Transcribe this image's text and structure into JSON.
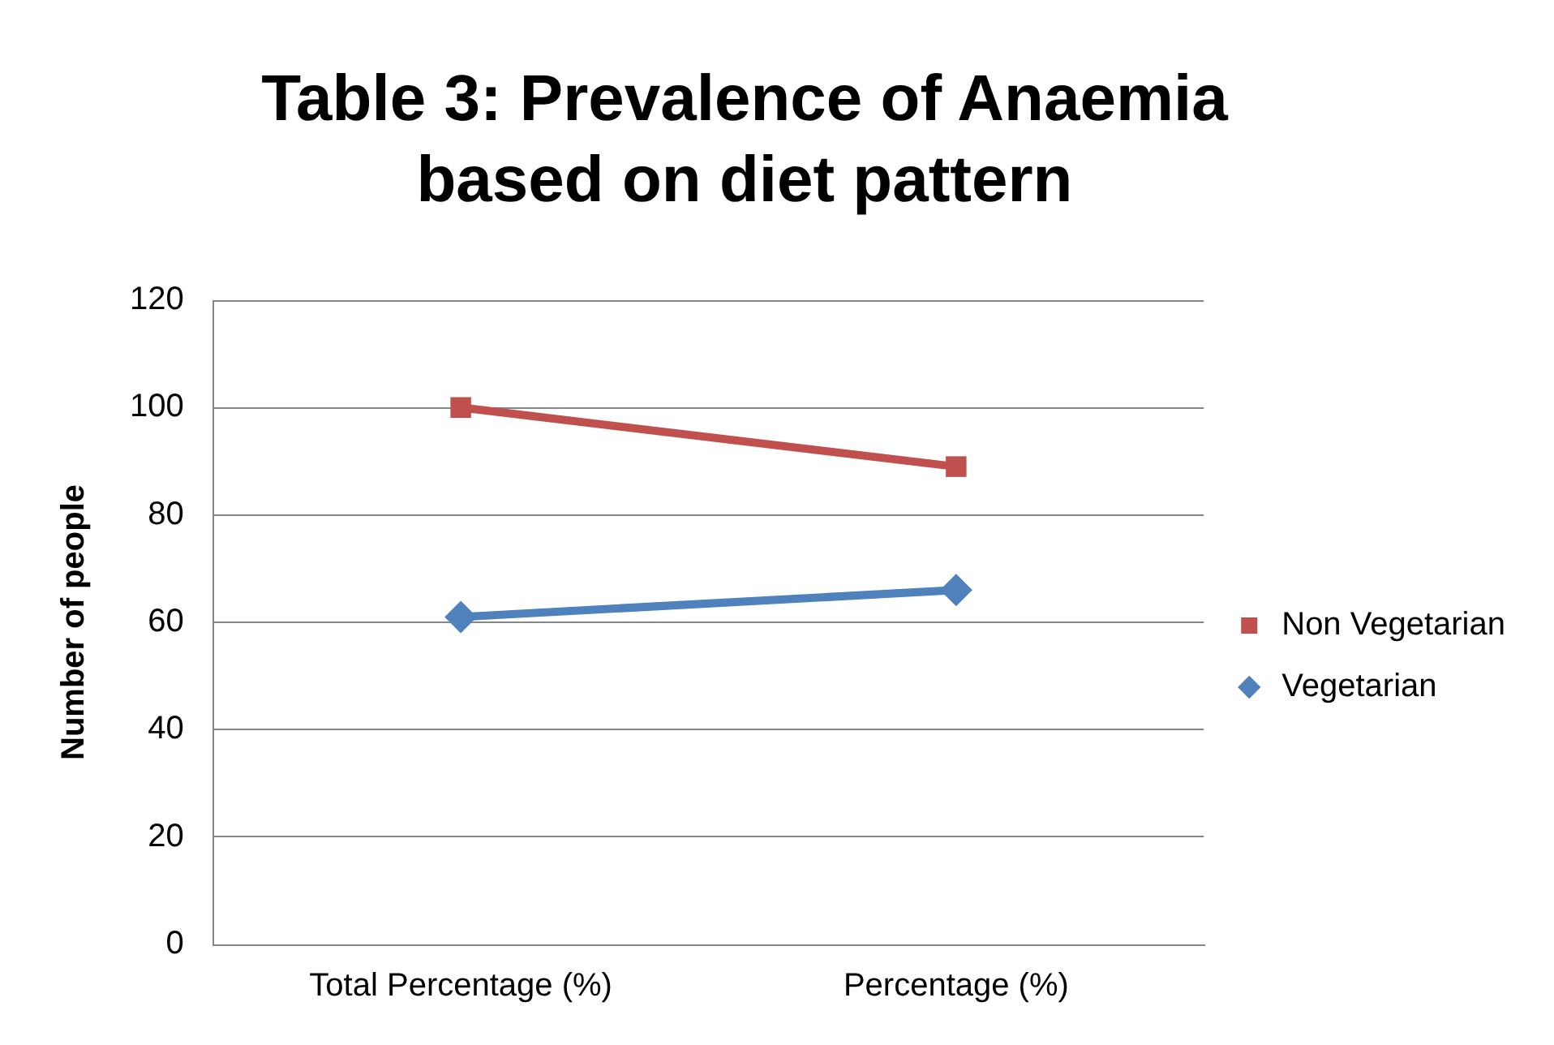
{
  "chart_data": {
    "type": "line",
    "title": "Table 3: Prevalence of Anaemia based on diet pattern",
    "ylabel": "Number of people",
    "categories": [
      "Total Percentage (%)",
      "Percentage (%)"
    ],
    "series": [
      {
        "name": "Non Vegetarian",
        "color": "#c0504d",
        "values": [
          100,
          89
        ],
        "marker": "square"
      },
      {
        "name": "Vegetarian",
        "color": "#4f81bd",
        "values": [
          61,
          66
        ],
        "marker": "diamond"
      }
    ],
    "ylim": [
      0,
      120
    ],
    "yticks": [
      0,
      20,
      40,
      60,
      80,
      100,
      120
    ],
    "grid": "y",
    "legend": "right"
  }
}
